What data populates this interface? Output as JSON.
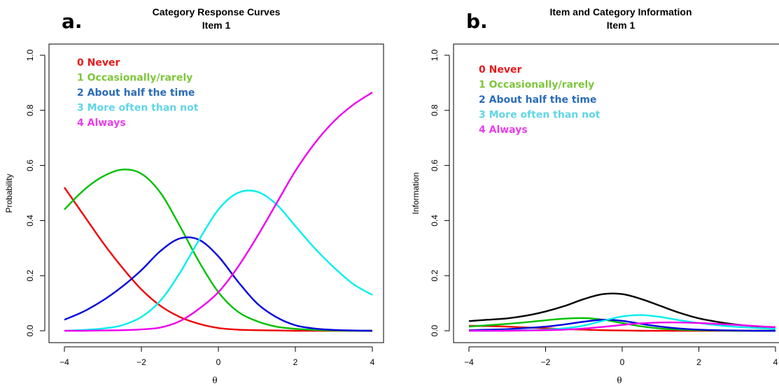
{
  "chart_data": [
    {
      "type": "line",
      "panel_letter": "a.",
      "title": "Category Response Curves",
      "subtitle": "Item 1",
      "xlabel": "θ",
      "ylabel": "Probability",
      "xlim": [
        -4,
        4
      ],
      "ylim": [
        0,
        1
      ],
      "xticks": [
        "−4",
        "−2",
        "0",
        "2",
        "4"
      ],
      "yticks": [
        "0.0",
        "0.2",
        "0.4",
        "0.6",
        "0.8",
        "1.0"
      ],
      "legend_position": "top-left",
      "legend": [
        {
          "label": "0 Never",
          "color": "#e8191b"
        },
        {
          "label": "1 Occasionally/rarely",
          "color": "#7dc63b"
        },
        {
          "label": "2 About half the time",
          "color": "#2b6cb8"
        },
        {
          "label": "3 More often than not",
          "color": "#5fd6e6"
        },
        {
          "label": "4 Always",
          "color": "#e83ee8"
        }
      ],
      "series": [
        {
          "color": "#ee0000",
          "x": [
            -4,
            -3.5,
            -3,
            -2.5,
            -2,
            -1.5,
            -1,
            -0.5,
            0,
            0.5,
            1,
            1.5,
            2,
            2.5,
            3,
            3.5,
            4
          ],
          "y": [
            0.52,
            0.42,
            0.32,
            0.23,
            0.15,
            0.09,
            0.05,
            0.025,
            0.01,
            0.004,
            0.002,
            0.001,
            0,
            0,
            0,
            0,
            0
          ]
        },
        {
          "color": "#00c000",
          "x": [
            -4,
            -3.5,
            -3,
            -2.5,
            -2,
            -1.5,
            -1,
            -0.5,
            0,
            0.5,
            1,
            1.5,
            2,
            2.5,
            3,
            3.5,
            4
          ],
          "y": [
            0.44,
            0.51,
            0.56,
            0.585,
            0.57,
            0.5,
            0.38,
            0.25,
            0.14,
            0.07,
            0.035,
            0.015,
            0.007,
            0.003,
            0.001,
            0,
            0
          ]
        },
        {
          "color": "#0000dd",
          "x": [
            -4,
            -3.5,
            -3,
            -2.5,
            -2,
            -1.5,
            -1,
            -0.5,
            0,
            0.5,
            1,
            1.5,
            2,
            2.5,
            3,
            3.5,
            4
          ],
          "y": [
            0.04,
            0.07,
            0.11,
            0.16,
            0.22,
            0.29,
            0.335,
            0.33,
            0.27,
            0.18,
            0.1,
            0.05,
            0.02,
            0.008,
            0.003,
            0.001,
            0
          ]
        },
        {
          "color": "#00eeee",
          "x": [
            -4,
            -3.5,
            -3,
            -2.5,
            -2,
            -1.5,
            -1,
            -0.5,
            0,
            0.5,
            1,
            1.5,
            2,
            2.5,
            3,
            3.5,
            4
          ],
          "y": [
            0,
            0.003,
            0.008,
            0.02,
            0.05,
            0.11,
            0.21,
            0.33,
            0.44,
            0.5,
            0.505,
            0.46,
            0.38,
            0.3,
            0.23,
            0.17,
            0.13
          ]
        },
        {
          "color": "#ee00ee",
          "x": [
            -4,
            -3.5,
            -3,
            -2.5,
            -2,
            -1.5,
            -1,
            -0.5,
            0,
            0.5,
            1,
            1.5,
            2,
            2.5,
            3,
            3.5,
            4
          ],
          "y": [
            0,
            0,
            0.001,
            0.002,
            0.005,
            0.012,
            0.035,
            0.08,
            0.14,
            0.23,
            0.34,
            0.46,
            0.58,
            0.68,
            0.76,
            0.82,
            0.865
          ]
        }
      ]
    },
    {
      "type": "line",
      "panel_letter": "b.",
      "title": "Item and Category Information",
      "subtitle": "Item 1",
      "xlabel": "θ",
      "ylabel": "Information",
      "xlim": [
        -4,
        4
      ],
      "ylim": [
        0,
        1
      ],
      "xticks": [
        "−4",
        "−2",
        "0",
        "2",
        "4"
      ],
      "yticks": [
        "0.0",
        "0.2",
        "0.4",
        "0.6",
        "0.8",
        "1.0"
      ],
      "legend_position": "top-left",
      "legend": [
        {
          "label": "0 Never",
          "color": "#e8191b"
        },
        {
          "label": "1 Occasionally/rarely",
          "color": "#7dc63b"
        },
        {
          "label": "2 About half the time",
          "color": "#2b6cb8"
        },
        {
          "label": "3 More often than not",
          "color": "#5fd6e6"
        },
        {
          "label": "4 Always",
          "color": "#e83ee8"
        }
      ],
      "series": [
        {
          "color": "#000000",
          "x": [
            -4,
            -3.5,
            -3,
            -2.5,
            -2,
            -1.5,
            -1,
            -0.5,
            0,
            0.5,
            1,
            1.5,
            2,
            2.5,
            3,
            3.5,
            4
          ],
          "y": [
            0.035,
            0.04,
            0.045,
            0.055,
            0.07,
            0.09,
            0.115,
            0.133,
            0.133,
            0.115,
            0.09,
            0.065,
            0.045,
            0.032,
            0.022,
            0.016,
            0.012
          ]
        },
        {
          "color": "#ee0000",
          "x": [
            -4,
            -3.5,
            -3,
            -2.5,
            -2,
            -1.5,
            -1,
            -0.5,
            0,
            0.5,
            1,
            1.5,
            2,
            2.5,
            3,
            3.5,
            4
          ],
          "y": [
            0.018,
            0.017,
            0.015,
            0.012,
            0.009,
            0.006,
            0.004,
            0.002,
            0.001,
            0,
            0,
            0,
            0,
            0,
            0,
            0,
            0
          ]
        },
        {
          "color": "#00c000",
          "x": [
            -4,
            -3.5,
            -3,
            -2.5,
            -2,
            -1.5,
            -1,
            -0.5,
            0,
            0.5,
            1,
            1.5,
            2,
            2.5,
            3,
            3.5,
            4
          ],
          "y": [
            0.015,
            0.02,
            0.025,
            0.031,
            0.038,
            0.044,
            0.046,
            0.04,
            0.028,
            0.016,
            0.008,
            0.004,
            0.002,
            0.001,
            0,
            0,
            0
          ]
        },
        {
          "color": "#0000dd",
          "x": [
            -4,
            -3.5,
            -3,
            -2.5,
            -2,
            -1.5,
            -1,
            -0.5,
            0,
            0.5,
            1,
            1.5,
            2,
            2.5,
            3,
            3.5,
            4
          ],
          "y": [
            0.002,
            0.004,
            0.006,
            0.01,
            0.015,
            0.023,
            0.033,
            0.04,
            0.036,
            0.025,
            0.015,
            0.008,
            0.004,
            0.002,
            0.001,
            0,
            0
          ]
        },
        {
          "color": "#00eeee",
          "x": [
            -4,
            -3.5,
            -3,
            -2.5,
            -2,
            -1.5,
            -1,
            -0.5,
            0,
            0.5,
            1,
            1.5,
            2,
            2.5,
            3,
            3.5,
            4
          ],
          "y": [
            0,
            0,
            0.001,
            0.002,
            0.004,
            0.009,
            0.019,
            0.036,
            0.052,
            0.057,
            0.05,
            0.038,
            0.028,
            0.02,
            0.014,
            0.01,
            0.007
          ]
        },
        {
          "color": "#ee00ee",
          "x": [
            -4,
            -3.5,
            -3,
            -2.5,
            -2,
            -1.5,
            -1,
            -0.5,
            0,
            0.5,
            1,
            1.5,
            2,
            2.5,
            3,
            3.5,
            4
          ],
          "y": [
            0,
            0,
            0,
            0.001,
            0.002,
            0.004,
            0.008,
            0.014,
            0.021,
            0.027,
            0.03,
            0.03,
            0.028,
            0.025,
            0.021,
            0.017,
            0.013
          ]
        }
      ]
    }
  ]
}
